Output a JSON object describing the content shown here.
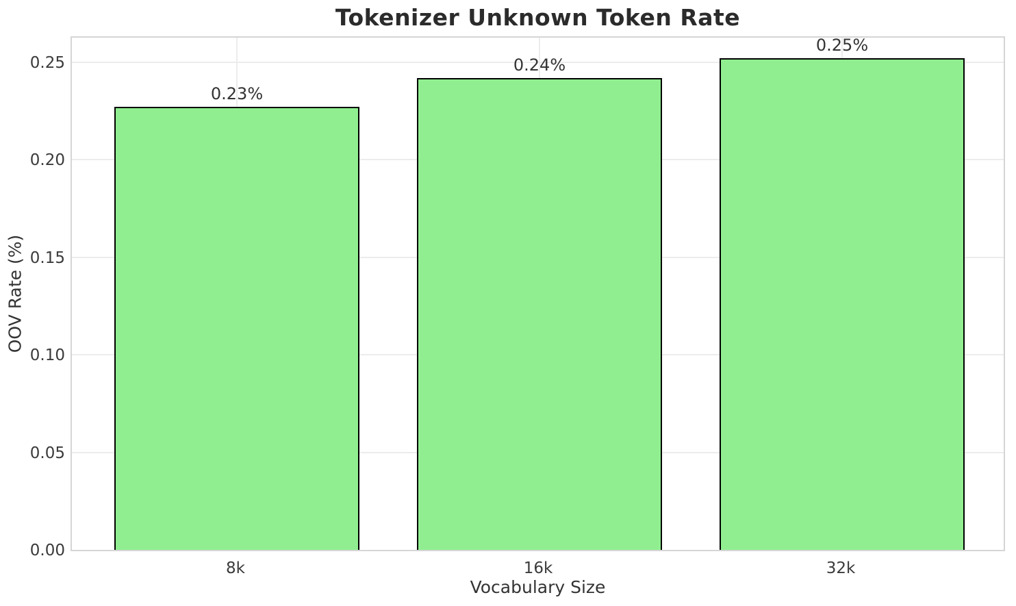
{
  "chart_data": {
    "type": "bar",
    "title": "Tokenizer Unknown Token Rate",
    "xlabel": "Vocabulary Size",
    "ylabel": "OOV Rate (%)",
    "categories": [
      "8k",
      "16k",
      "32k"
    ],
    "values": [
      0.227,
      0.242,
      0.252
    ],
    "bar_labels": [
      "0.23%",
      "0.24%",
      "0.25%"
    ],
    "yticks": [
      0,
      0.05,
      0.1,
      0.15,
      0.2,
      0.25
    ],
    "ytick_labels": [
      "0.00",
      "0.05",
      "0.10",
      "0.15",
      "0.20",
      "0.25"
    ],
    "ylim": [
      0,
      0.264
    ],
    "grid": true,
    "legend": null,
    "bar_color": "#90EE90",
    "bar_edge_color": "#000000",
    "grid_color": "#ececec",
    "spine_color": "#d5d5d5",
    "title_color": "#2b2b2b",
    "text_color": "#333333"
  }
}
